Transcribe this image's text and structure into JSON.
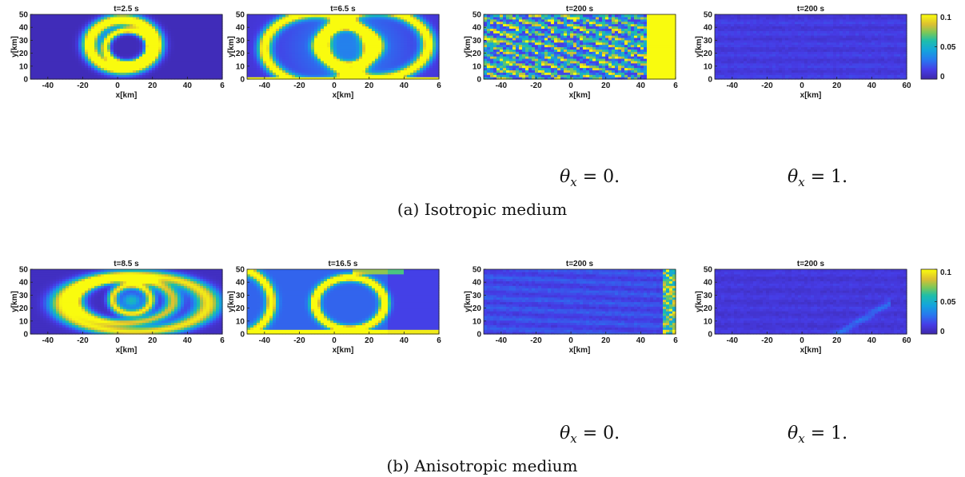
{
  "colorbar": {
    "min": 0,
    "max": 0.1,
    "ticks": [
      "0.1",
      "0.05",
      "0"
    ]
  },
  "rows": [
    {
      "caption": "(a) Isotropic medium",
      "theta_labels": [
        "θx = 0.",
        "θx = 1."
      ],
      "panels": [
        {
          "title": "t=2.5 s",
          "xticks": [
            "-40",
            "-20",
            "0",
            "20",
            "40",
            "6"
          ]
        },
        {
          "title": "t=6.5 s",
          "xticks": [
            "-40",
            "-20",
            "0",
            "20",
            "40",
            "6"
          ]
        },
        {
          "title": "t=200 s",
          "xticks": [
            "-40",
            "-20",
            "0",
            "20",
            "40",
            "6"
          ]
        },
        {
          "title": "t=200 s",
          "xticks": [
            "-40",
            "-20",
            "0",
            "20",
            "40",
            "60"
          ]
        }
      ]
    },
    {
      "caption": "(b) Anisotropic medium",
      "theta_labels": [
        "θx = 0.",
        "θx = 1."
      ],
      "panels": [
        {
          "title": "t=8.5 s",
          "xticks": [
            "-40",
            "-20",
            "0",
            "20",
            "40",
            "6"
          ]
        },
        {
          "title": "t=16.5 s",
          "xticks": [
            "-40",
            "-20",
            "0",
            "20",
            "40",
            "6"
          ]
        },
        {
          "title": "t=200 s",
          "xticks": [
            "-40",
            "-20",
            "0",
            "20",
            "40",
            "6"
          ]
        },
        {
          "title": "t=200 s",
          "xticks": [
            "-40",
            "-20",
            "0",
            "20",
            "40",
            "60"
          ]
        }
      ]
    }
  ],
  "chart_data": {
    "type": "heatmap",
    "xlabel": "x[km]",
    "ylabel": "y[km]",
    "xlim": [
      -50,
      60
    ],
    "ylim": [
      0,
      50
    ],
    "yticks": [
      "0",
      "10",
      "20",
      "30",
      "40",
      "50"
    ],
    "colormap": "parula",
    "colors": {
      "low": "#3e26a8",
      "mid": "#13beb8",
      "high": "#f9fb0e"
    }
  }
}
